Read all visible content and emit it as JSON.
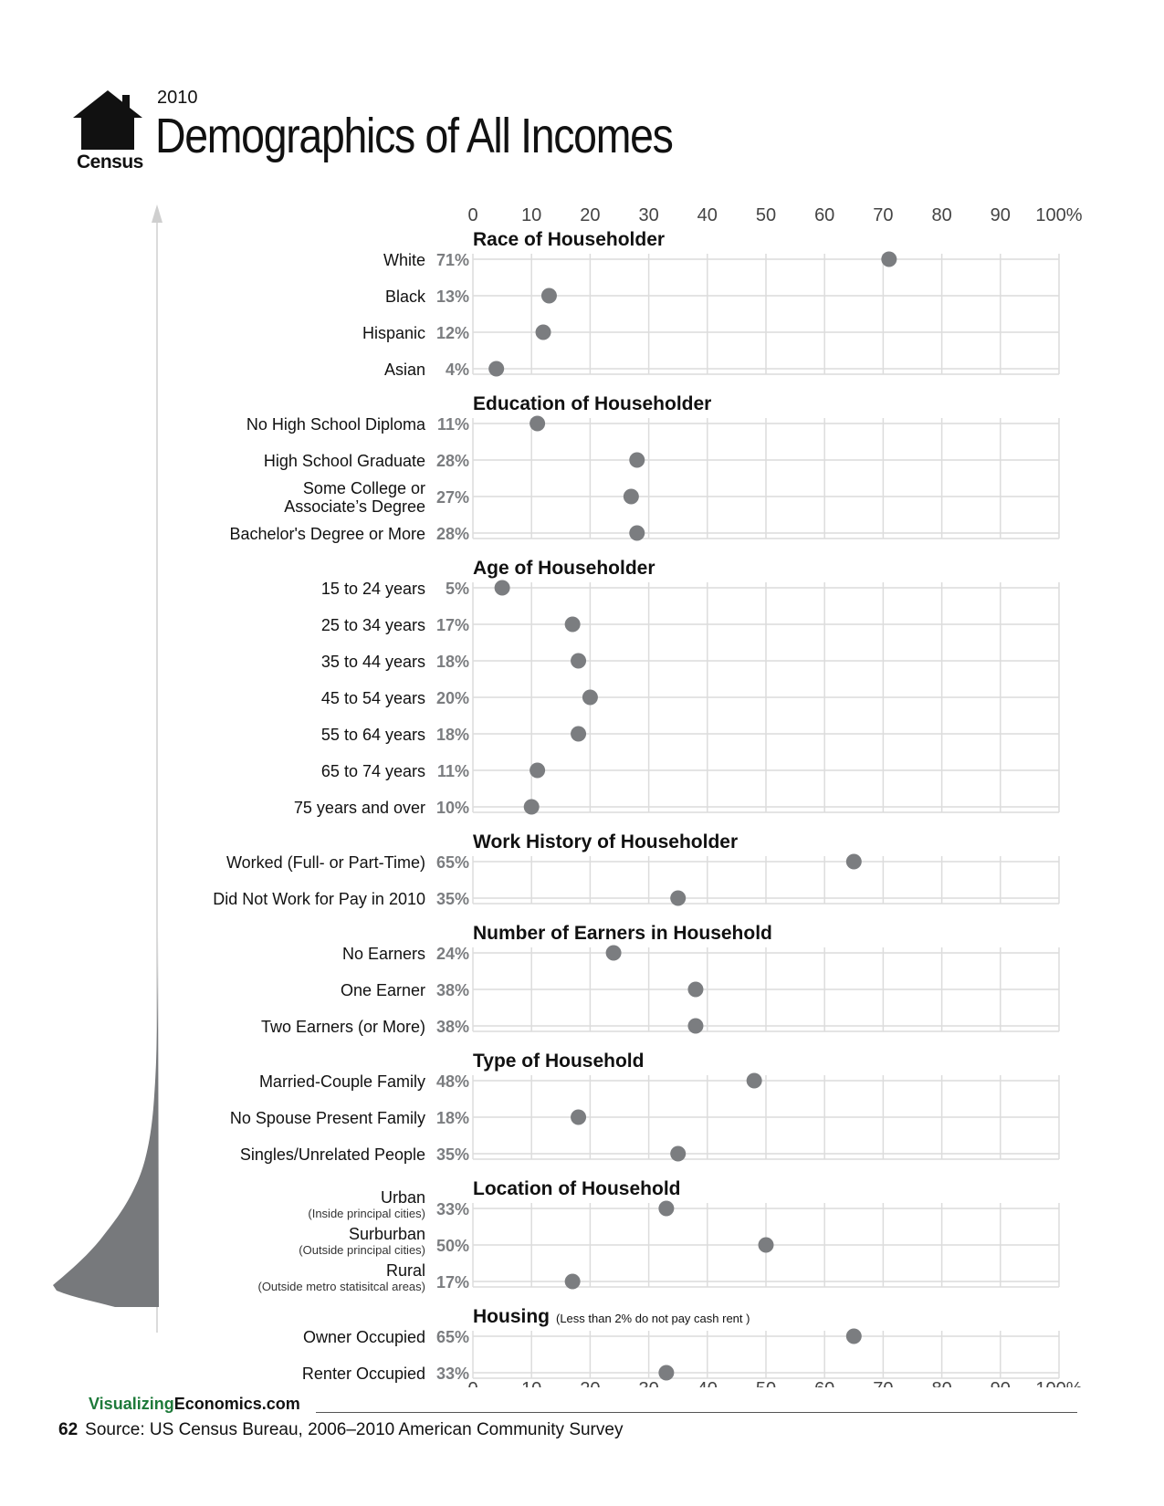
{
  "header": {
    "year": "2010",
    "title": "Demographics of All Incomes",
    "logo_label": "Census"
  },
  "colors": {
    "dot": "#7b7d80",
    "grid": "#dcdcdc",
    "value_label": "#7b7d80",
    "brand_green": "#1e7a3a"
  },
  "chart_data": {
    "type": "scatter",
    "title": "Demographics of All Incomes",
    "xlim": [
      0,
      100
    ],
    "x_ticks": [
      "0",
      "10",
      "20",
      "30",
      "40",
      "50",
      "60",
      "70",
      "80",
      "90",
      "100%"
    ],
    "grid": true,
    "panels": [
      {
        "title": "Race of Householder",
        "title_note": "",
        "items": [
          {
            "label": "White",
            "value": 71,
            "value_label": "71%"
          },
          {
            "label": "Black",
            "value": 13,
            "value_label": "13%"
          },
          {
            "label": "Hispanic",
            "value": 12,
            "value_label": "12%"
          },
          {
            "label": "Asian",
            "value": 4,
            "value_label": "4%"
          }
        ]
      },
      {
        "title": "Education of Householder",
        "title_note": "",
        "items": [
          {
            "label": "No High School Diploma",
            "value": 11,
            "value_label": "11%"
          },
          {
            "label": "High School Graduate",
            "value": 28,
            "value_label": "28%"
          },
          {
            "label": "Some College or",
            "label2": "Associate’s Degree",
            "value": 27,
            "value_label": "27%"
          },
          {
            "label": "Bachelor's Degree or More",
            "value": 28,
            "value_label": "28%"
          }
        ]
      },
      {
        "title": "Age of Householder",
        "title_note": "",
        "items": [
          {
            "label": "15 to 24 years",
            "value": 5,
            "value_label": "5%"
          },
          {
            "label": "25 to 34 years",
            "value": 17,
            "value_label": "17%"
          },
          {
            "label": "35 to 44 years",
            "value": 18,
            "value_label": "18%"
          },
          {
            "label": "45 to 54 years",
            "value": 20,
            "value_label": "20%"
          },
          {
            "label": "55 to 64 years",
            "value": 18,
            "value_label": "18%"
          },
          {
            "label": "65 to 74 years",
            "value": 11,
            "value_label": "11%"
          },
          {
            "label": "75 years and over",
            "value": 10,
            "value_label": "10%"
          }
        ]
      },
      {
        "title": "Work History of Householder",
        "title_note": "",
        "items": [
          {
            "label": "Worked (Full- or Part-Time)",
            "value": 65,
            "value_label": "65%"
          },
          {
            "label": "Did Not Work for Pay in 2010",
            "value": 35,
            "value_label": "35%"
          }
        ]
      },
      {
        "title": "Number of Earners in Household",
        "title_note": "",
        "items": [
          {
            "label": "No Earners",
            "value": 24,
            "value_label": "24%"
          },
          {
            "label": "One Earner",
            "value": 38,
            "value_label": "38%"
          },
          {
            "label": "Two Earners (or More)",
            "value": 38,
            "value_label": "38%"
          }
        ]
      },
      {
        "title": "Type of Household",
        "title_note": "",
        "items": [
          {
            "label": "Married-Couple Family",
            "value": 48,
            "value_label": "48%"
          },
          {
            "label": "No Spouse Present Family",
            "value": 18,
            "value_label": "18%"
          },
          {
            "label": "Singles/Unrelated People",
            "value": 35,
            "value_label": "35%"
          }
        ]
      },
      {
        "title": "Location of Household",
        "title_note": "",
        "items": [
          {
            "label": "Urban",
            "sublabel": "(Inside principal cities)",
            "value": 33,
            "value_label": "33%"
          },
          {
            "label": "Surburban",
            "sublabel": "(Outside principal cities)",
            "value": 50,
            "value_label": "50%"
          },
          {
            "label": "Rural",
            "sublabel": "(Outside metro statisitcal areas)",
            "value": 17,
            "value_label": "17%"
          }
        ]
      },
      {
        "title": "Housing",
        "title_note": "(Less than 2% do not pay cash rent )",
        "items": [
          {
            "label": "Owner Occupied",
            "value": 65,
            "value_label": "65%"
          },
          {
            "label": "Renter Occupied",
            "value": 33,
            "value_label": "33%"
          }
        ]
      }
    ]
  },
  "footer": {
    "brand_green": "Visualizing",
    "brand_rest": "Economics.com",
    "page_number": "62",
    "source": "Source: US Census Bureau, 2006–2010 American Community Survey"
  }
}
